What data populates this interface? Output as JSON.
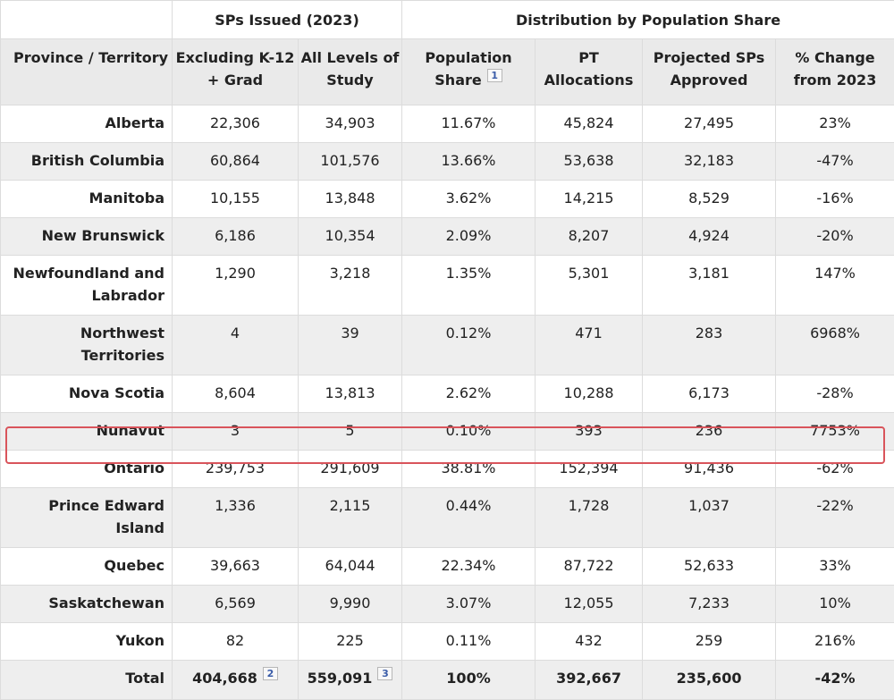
{
  "header": {
    "group_sps": "SPs Issued (2023)",
    "group_dist": "Distribution by Population Share",
    "col_province": "Province / Territory",
    "col_excl": "Excluding K-12 + Grad",
    "col_all": "All Levels of Study",
    "col_pop": "Population Share",
    "col_pop_fn": "1",
    "col_pt": "PT Allocations",
    "col_proj": "Projected SPs Approved",
    "col_change": "% Change from 2023"
  },
  "rows": [
    {
      "province": "Alberta",
      "excl": "22,306",
      "all": "34,903",
      "pop": "11.67%",
      "pt": "45,824",
      "proj": "27,495",
      "change": "23%"
    },
    {
      "province": "British Columbia",
      "excl": "60,864",
      "all": "101,576",
      "pop": "13.66%",
      "pt": "53,638",
      "proj": "32,183",
      "change": "-47%"
    },
    {
      "province": "Manitoba",
      "excl": "10,155",
      "all": "13,848",
      "pop": "3.62%",
      "pt": "14,215",
      "proj": "8,529",
      "change": "-16%"
    },
    {
      "province": "New Brunswick",
      "excl": "6,186",
      "all": "10,354",
      "pop": "2.09%",
      "pt": "8,207",
      "proj": "4,924",
      "change": "-20%"
    },
    {
      "province": "Newfoundland and Labrador",
      "excl": "1,290",
      "all": "3,218",
      "pop": "1.35%",
      "pt": "5,301",
      "proj": "3,181",
      "change": "147%"
    },
    {
      "province": "Northwest Territories",
      "excl": "4",
      "all": "39",
      "pop": "0.12%",
      "pt": "471",
      "proj": "283",
      "change": "6968%"
    },
    {
      "province": "Nova Scotia",
      "excl": "8,604",
      "all": "13,813",
      "pop": "2.62%",
      "pt": "10,288",
      "proj": "6,173",
      "change": "-28%"
    },
    {
      "province": "Nunavut",
      "excl": "3",
      "all": "5",
      "pop": "0.10%",
      "pt": "393",
      "proj": "236",
      "change": "7753%"
    },
    {
      "province": "Ontario",
      "excl": "239,753",
      "all": "291,609",
      "pop": "38.81%",
      "pt": "152,394",
      "proj": "91,436",
      "change": "-62%"
    },
    {
      "province": "Prince Edward Island",
      "excl": "1,336",
      "all": "2,115",
      "pop": "0.44%",
      "pt": "1,728",
      "proj": "1,037",
      "change": "-22%"
    },
    {
      "province": "Quebec",
      "excl": "39,663",
      "all": "64,044",
      "pop": "22.34%",
      "pt": "87,722",
      "proj": "52,633",
      "change": "33%"
    },
    {
      "province": "Saskatchewan",
      "excl": "6,569",
      "all": "9,990",
      "pop": "3.07%",
      "pt": "12,055",
      "proj": "7,233",
      "change": "10%"
    },
    {
      "province": "Yukon",
      "excl": "82",
      "all": "225",
      "pop": "0.11%",
      "pt": "432",
      "proj": "259",
      "change": "216%"
    }
  ],
  "total": {
    "label": "Total",
    "excl": "404,668",
    "excl_fn": "2",
    "all": "559,091",
    "all_fn": "3",
    "pop": "100%",
    "pt": "392,667",
    "proj": "235,600",
    "change": "-42%"
  },
  "highlight": {
    "row": "Ontario",
    "color": "#d9545b"
  }
}
